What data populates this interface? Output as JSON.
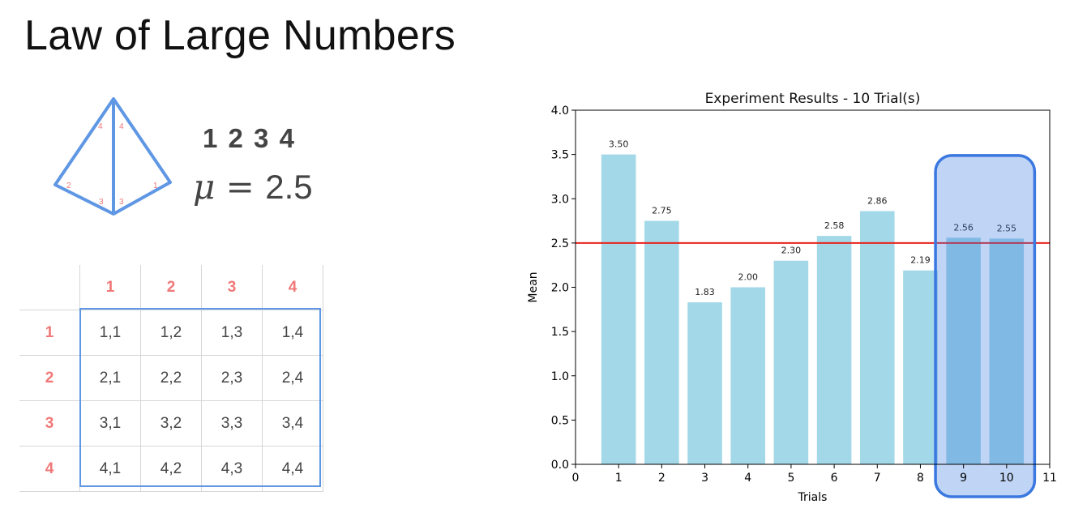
{
  "page": {
    "title": "Law of Large Numbers"
  },
  "die": {
    "edge_labels": [
      "4",
      "4",
      "2",
      "3",
      "3",
      "1"
    ],
    "faces": "1 2 3 4",
    "mean_symbol": "μ",
    "mean_equals": "=",
    "mean_value": "2.5"
  },
  "grid": {
    "column_headers": [
      "1",
      "2",
      "3",
      "4"
    ],
    "rows": [
      {
        "header": "1",
        "cells": [
          "1,1",
          "1,2",
          "1,3",
          "1,4"
        ]
      },
      {
        "header": "2",
        "cells": [
          "2,1",
          "2,2",
          "2,3",
          "2,4"
        ]
      },
      {
        "header": "3",
        "cells": [
          "3,1",
          "3,2",
          "3,3",
          "3,4"
        ]
      },
      {
        "header": "4",
        "cells": [
          "4,1",
          "4,2",
          "4,3",
          "4,4"
        ]
      }
    ]
  },
  "chart_data": {
    "type": "bar",
    "title": "Experiment Results - 10 Trial(s)",
    "xlabel": "Trials",
    "ylabel": "Mean",
    "x": [
      1,
      2,
      3,
      4,
      5,
      6,
      7,
      8,
      9,
      10
    ],
    "values": [
      3.5,
      2.75,
      1.83,
      2.0,
      2.3,
      2.58,
      2.86,
      2.19,
      2.56,
      2.55
    ],
    "value_labels": [
      "3.50",
      "2.75",
      "1.83",
      "2.00",
      "2.30",
      "2.58",
      "2.86",
      "2.19",
      "2.56",
      "2.55"
    ],
    "xlim": [
      0,
      11
    ],
    "ylim": [
      0,
      4
    ],
    "xticks": [
      "0",
      "1",
      "2",
      "3",
      "4",
      "5",
      "6",
      "7",
      "8",
      "9",
      "10",
      "11"
    ],
    "yticks": [
      "0.0",
      "0.5",
      "1.0",
      "1.5",
      "2.0",
      "2.5",
      "3.0",
      "3.5",
      "4.0"
    ],
    "reference_line": {
      "y": 2.5,
      "color": "#e8221b"
    },
    "bar_color": "#a2d8e7",
    "highlight": {
      "x_from": 9,
      "x_to": 10,
      "color": "#3a78e0"
    },
    "grid": false
  }
}
